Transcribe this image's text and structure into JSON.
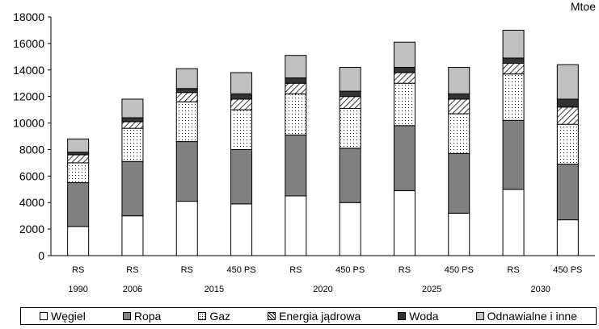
{
  "chart_data": {
    "type": "bar",
    "stacked": true,
    "unit": "Mtoe",
    "ylim": [
      0,
      18000
    ],
    "yticks": [
      0,
      2000,
      4000,
      6000,
      8000,
      10000,
      12000,
      14000,
      16000,
      18000
    ],
    "groups": [
      {
        "year": "1990",
        "bars": [
          "RS"
        ]
      },
      {
        "year": "2006",
        "bars": [
          "RS"
        ]
      },
      {
        "year": "2015",
        "bars": [
          "RS",
          "450 PS"
        ]
      },
      {
        "year": "2020",
        "bars": [
          "RS",
          "450 PS"
        ]
      },
      {
        "year": "2025",
        "bars": [
          "RS",
          "450 PS"
        ]
      },
      {
        "year": "2030",
        "bars": [
          "RS",
          "450 PS"
        ]
      }
    ],
    "categories": [
      "RS 1990",
      "RS 2006",
      "RS 2015",
      "450 PS 2015",
      "RS 2020",
      "450 PS 2020",
      "RS 2025",
      "450 PS 2025",
      "RS 2030",
      "450 PS 2030"
    ],
    "series": [
      {
        "name": "Węgiel",
        "color": "#ffffff",
        "pattern": "solid-white",
        "values": [
          2200,
          3000,
          4100,
          3900,
          4500,
          4000,
          4900,
          3200,
          5000,
          2700
        ]
      },
      {
        "name": "Ropa",
        "color": "#808080",
        "pattern": "solid-gray",
        "values": [
          3300,
          4100,
          4500,
          4100,
          4600,
          4100,
          4900,
          4500,
          5200,
          4200
        ]
      },
      {
        "name": "Gaz",
        "color": "#ffffff",
        "pattern": "dots",
        "values": [
          1500,
          2500,
          3000,
          3000,
          3100,
          3000,
          3200,
          3000,
          3500,
          3000
        ]
      },
      {
        "name": "Energia jądrowa",
        "color": "#ffffff",
        "pattern": "hatch",
        "values": [
          600,
          500,
          700,
          800,
          800,
          900,
          800,
          1100,
          800,
          1300
        ]
      },
      {
        "name": "Woda",
        "color": "#333333",
        "pattern": "solid-dark",
        "values": [
          200,
          300,
          300,
          400,
          400,
          400,
          400,
          400,
          400,
          600
        ]
      },
      {
        "name": "Odnawialne i inne",
        "color": "#c0c0c0",
        "pattern": "solid-lightgray",
        "values": [
          1000,
          1400,
          1500,
          1600,
          1700,
          1800,
          1900,
          2000,
          2100,
          2600
        ]
      }
    ],
    "legend_position": "bottom",
    "grid": false
  }
}
